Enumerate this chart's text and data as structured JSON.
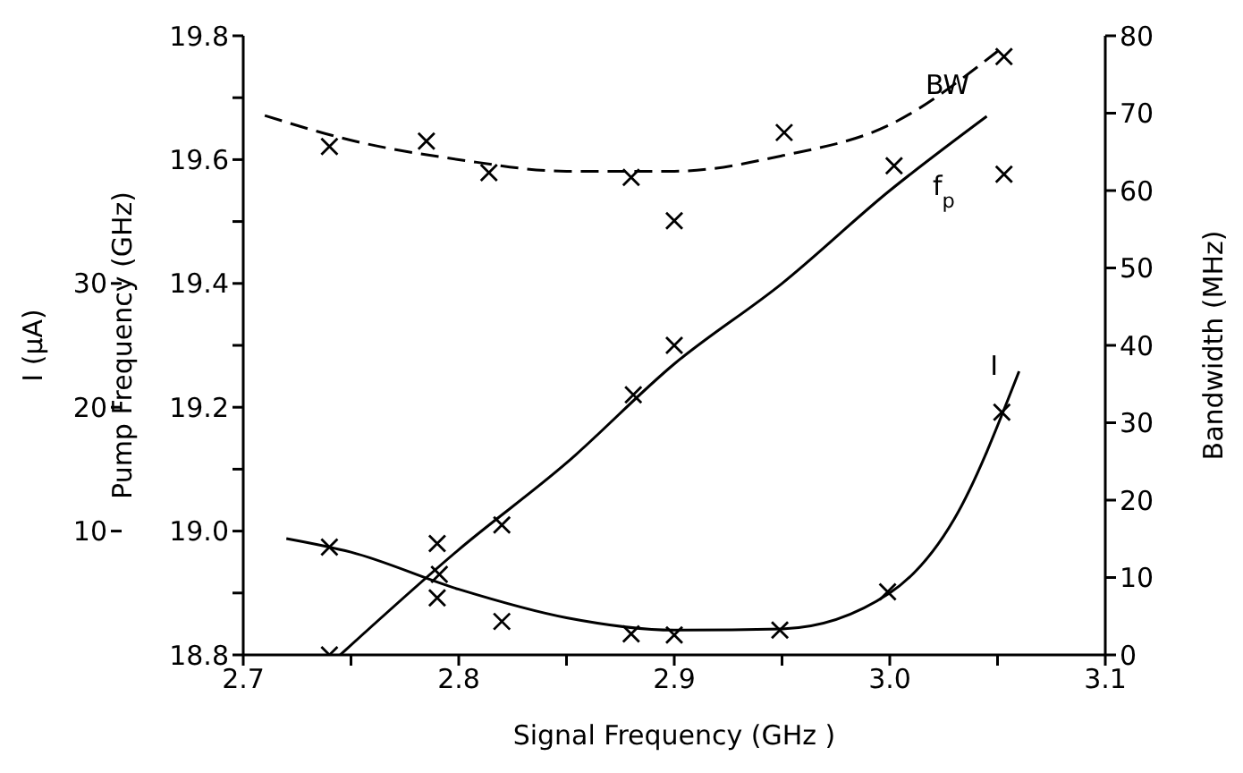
{
  "chart_data": {
    "type": "scatter",
    "xlabel": "Signal Frequency (GHz )",
    "ylabel": "Pump Frequency (GHz)",
    "y2label": "Bandwidth (MHz)",
    "y3label": "I (μA)",
    "marker": "cross",
    "xlim": [
      2.7,
      3.1
    ],
    "xticks": [
      {
        "value": 2.7,
        "label": "2.7"
      },
      {
        "value": 2.75,
        "label": null
      },
      {
        "value": 2.8,
        "label": "2.8"
      },
      {
        "value": 2.85,
        "label": null
      },
      {
        "value": 2.9,
        "label": "2.9"
      },
      {
        "value": 2.95,
        "label": null
      },
      {
        "value": 3.0,
        "label": "3.0"
      },
      {
        "value": 3.05,
        "label": null
      },
      {
        "value": 3.1,
        "label": "3.1"
      }
    ],
    "ylim": [
      18.8,
      19.8
    ],
    "yticks": [
      {
        "value": 18.8,
        "label": "18.8"
      },
      {
        "value": 18.9,
        "label": null
      },
      {
        "value": 19.0,
        "label": "19.0"
      },
      {
        "value": 19.1,
        "label": null
      },
      {
        "value": 19.2,
        "label": "19.2"
      },
      {
        "value": 19.3,
        "label": null
      },
      {
        "value": 19.4,
        "label": "19.4"
      },
      {
        "value": 19.5,
        "label": null
      },
      {
        "value": 19.6,
        "label": "19.6"
      },
      {
        "value": 19.7,
        "label": null
      },
      {
        "value": 19.8,
        "label": "19.8"
      }
    ],
    "y2lim": [
      0,
      80
    ],
    "y2ticks": [
      0,
      10,
      20,
      30,
      40,
      50,
      60,
      70,
      80
    ],
    "y3lim": [
      0,
      50
    ],
    "y3ticks": [
      10,
      20,
      30
    ],
    "series": [
      {
        "color": "#000000",
        "axis": "y2",
        "x": [
          2.74,
          2.785,
          2.814,
          2.88,
          2.9,
          2.951,
          3.053,
          3.053
        ],
        "values": [
          65.7,
          66.4,
          62.3,
          61.7,
          56.1,
          67.5,
          77.3,
          62.1
        ]
      },
      {
        "color": "#000000",
        "x": [
          2.74,
          2.79,
          2.791,
          2.82,
          2.881,
          2.9,
          3.002
        ],
        "values": [
          18.8,
          18.98,
          18.93,
          19.01,
          19.22,
          19.3,
          19.59
        ]
      },
      {
        "color": "#000000",
        "axis": "y3",
        "x": [
          2.74,
          2.79,
          2.82,
          2.88,
          2.9,
          2.949,
          2.999,
          3.052
        ],
        "values": [
          8.7,
          4.6,
          2.7,
          1.7,
          1.6,
          2.0,
          5.1,
          19.6
        ]
      },
      {
        "type": "line",
        "name": "BW",
        "color": "#000000",
        "axis": "y2",
        "line_style": "dashed",
        "marker": "none",
        "x": [
          2.71,
          2.75,
          2.8,
          2.85,
          2.9,
          2.95,
          3.0,
          3.05
        ],
        "values": [
          69.7,
          66.5,
          64,
          62.5,
          62.5,
          64.5,
          68.5,
          78
        ]
      },
      {
        "type": "line",
        "name": "f$_{p}$",
        "color": "#000000",
        "line_style": "solid",
        "marker": "none",
        "x": [
          2.745,
          2.8,
          2.85,
          2.9,
          2.95,
          3.0,
          3.045
        ],
        "values": [
          18.8,
          18.97,
          19.11,
          19.27,
          19.4,
          19.55,
          19.67
        ]
      },
      {
        "type": "line",
        "name": "I",
        "color": "#000000",
        "axis": "y3",
        "line_style": "solid",
        "marker": "none",
        "x": [
          2.72,
          2.75,
          2.8,
          2.85,
          2.9,
          2.95,
          3.0,
          3.03,
          3.06
        ],
        "values": [
          9.4,
          8.3,
          5.3,
          3.0,
          2.0,
          2.1,
          5.0,
          11,
          22.9
        ]
      }
    ]
  }
}
